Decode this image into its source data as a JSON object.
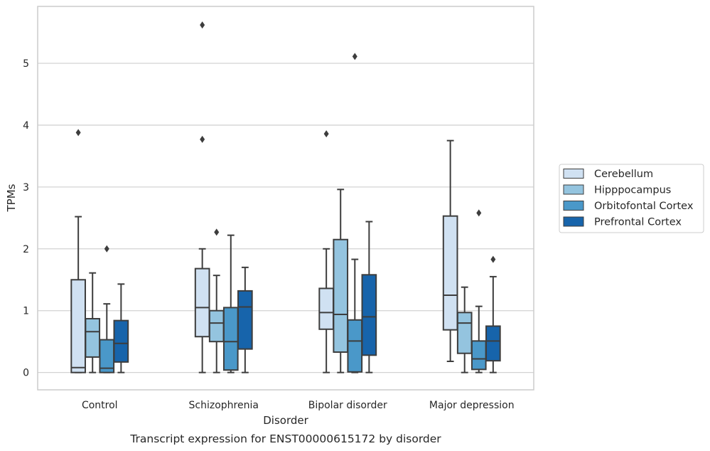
{
  "chart_data": {
    "type": "box",
    "title": "",
    "caption": "Transcript expression for ENST00000615172 by disorder",
    "xlabel": "Disorder",
    "ylabel": "TPMs",
    "ylim": [
      -0.28,
      5.92
    ],
    "yticks": [
      0,
      1,
      2,
      3,
      4,
      5
    ],
    "grid": "horizontal",
    "legend_position": "right",
    "categories": [
      "Control",
      "Schizophrenia",
      "Bipolar disorder",
      "Major depression"
    ],
    "series": [
      {
        "name": "Cerebellum",
        "color": "#d0e1f2",
        "boxes": [
          {
            "whislo": 0.0,
            "q1": 0.0,
            "med": 0.08,
            "q3": 1.5,
            "whishi": 2.52,
            "fliers": [
              3.88
            ]
          },
          {
            "whislo": 0.0,
            "q1": 0.58,
            "med": 1.05,
            "q3": 1.68,
            "whishi": 2.0,
            "fliers": [
              3.77,
              5.62
            ]
          },
          {
            "whislo": 0.0,
            "q1": 0.7,
            "med": 0.97,
            "q3": 1.36,
            "whishi": 2.0,
            "fliers": [
              3.86
            ]
          },
          {
            "whislo": 0.18,
            "q1": 0.69,
            "med": 1.25,
            "q3": 2.53,
            "whishi": 3.75,
            "fliers": []
          }
        ]
      },
      {
        "name": "Hipppocampus",
        "color": "#94c4df",
        "boxes": [
          {
            "whislo": 0.0,
            "q1": 0.25,
            "med": 0.66,
            "q3": 0.87,
            "whishi": 1.61,
            "fliers": []
          },
          {
            "whislo": 0.0,
            "q1": 0.5,
            "med": 0.8,
            "q3": 1.0,
            "whishi": 1.57,
            "fliers": [
              2.27
            ]
          },
          {
            "whislo": 0.0,
            "q1": 0.33,
            "med": 0.94,
            "q3": 2.15,
            "whishi": 2.96,
            "fliers": []
          },
          {
            "whislo": 0.0,
            "q1": 0.31,
            "med": 0.8,
            "q3": 0.97,
            "whishi": 1.38,
            "fliers": []
          }
        ]
      },
      {
        "name": "Orbitofontal Cortex",
        "color": "#4a98c9",
        "boxes": [
          {
            "whislo": 0.0,
            "q1": 0.0,
            "med": 0.07,
            "q3": 0.53,
            "whishi": 1.11,
            "fliers": [
              2.0
            ]
          },
          {
            "whislo": 0.0,
            "q1": 0.04,
            "med": 0.5,
            "q3": 1.05,
            "whishi": 2.22,
            "fliers": []
          },
          {
            "whislo": 0.0,
            "q1": 0.01,
            "med": 0.51,
            "q3": 0.85,
            "whishi": 1.83,
            "fliers": [
              5.11
            ]
          },
          {
            "whislo": 0.0,
            "q1": 0.05,
            "med": 0.22,
            "q3": 0.51,
            "whishi": 1.07,
            "fliers": [
              2.58
            ]
          }
        ]
      },
      {
        "name": "Prefrontal Cortex",
        "color": "#1764ab",
        "boxes": [
          {
            "whislo": 0.0,
            "q1": 0.17,
            "med": 0.47,
            "q3": 0.84,
            "whishi": 1.43,
            "fliers": []
          },
          {
            "whislo": 0.0,
            "q1": 0.38,
            "med": 1.06,
            "q3": 1.32,
            "whishi": 1.7,
            "fliers": []
          },
          {
            "whislo": 0.0,
            "q1": 0.28,
            "med": 0.9,
            "q3": 1.58,
            "whishi": 2.44,
            "fliers": []
          },
          {
            "whislo": 0.0,
            "q1": 0.19,
            "med": 0.51,
            "q3": 0.75,
            "whishi": 1.55,
            "fliers": [
              1.83
            ]
          }
        ]
      }
    ]
  }
}
